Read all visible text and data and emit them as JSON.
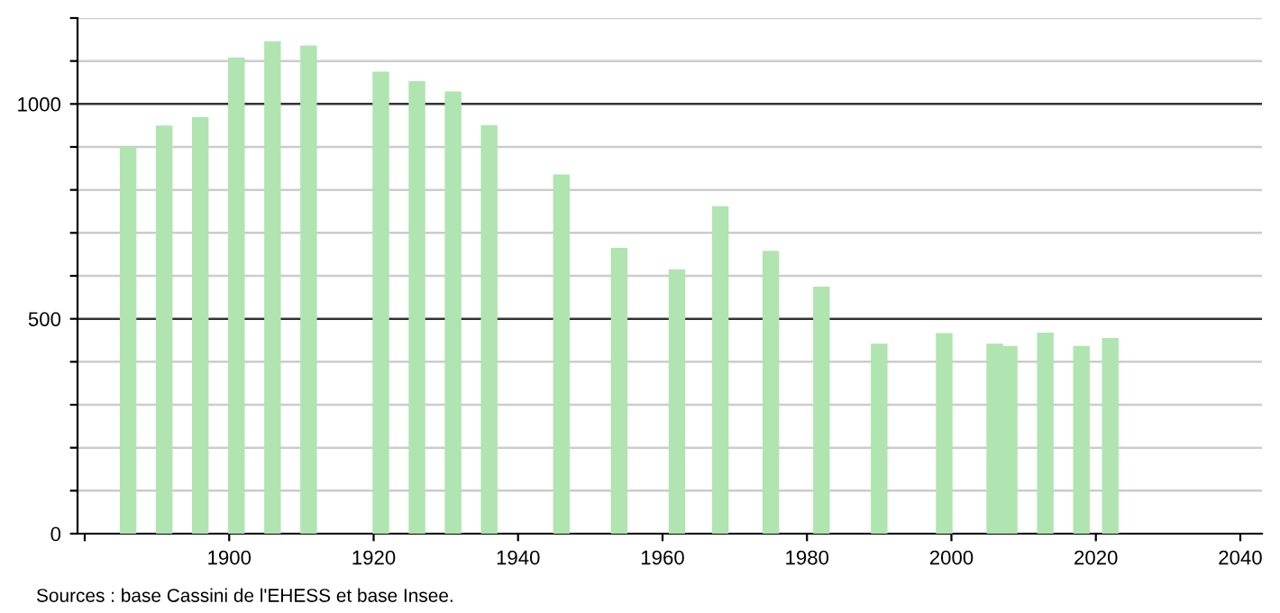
{
  "chart_data": {
    "type": "bar",
    "x": [
      1886,
      1891,
      1896,
      1901,
      1906,
      1911,
      1921,
      1926,
      1931,
      1936,
      1946,
      1954,
      1962,
      1968,
      1975,
      1982,
      1990,
      1999,
      2006,
      2008,
      2013,
      2018,
      2022
    ],
    "values": [
      900,
      950,
      969,
      1108,
      1146,
      1136,
      1075,
      1053,
      1029,
      951,
      836,
      665,
      615,
      762,
      658,
      575,
      442,
      467,
      442,
      437,
      468,
      437,
      455
    ],
    "color": "#b0e4b0",
    "xlim": [
      1879,
      2043
    ],
    "xticks": [
      {
        "value": 1880,
        "label": null
      },
      1900,
      1920,
      1940,
      1960,
      1980,
      2000,
      2020,
      2040
    ],
    "ylim": [
      0,
      1200
    ],
    "yticks": [
      0,
      {
        "value": 100,
        "label": null
      },
      {
        "value": 200,
        "label": null
      },
      {
        "value": 300,
        "label": null
      },
      {
        "value": 400,
        "label": null
      },
      500,
      {
        "value": 600,
        "label": null
      },
      {
        "value": 700,
        "label": null
      },
      {
        "value": 800,
        "label": null
      },
      {
        "value": 900,
        "label": null
      },
      1000,
      {
        "value": 1100,
        "label": null
      },
      {
        "value": 1200,
        "label": null
      }
    ],
    "grid": "y",
    "annotations": [
      "Sources : base Cassini de l'EHESS et base Insee."
    ]
  }
}
